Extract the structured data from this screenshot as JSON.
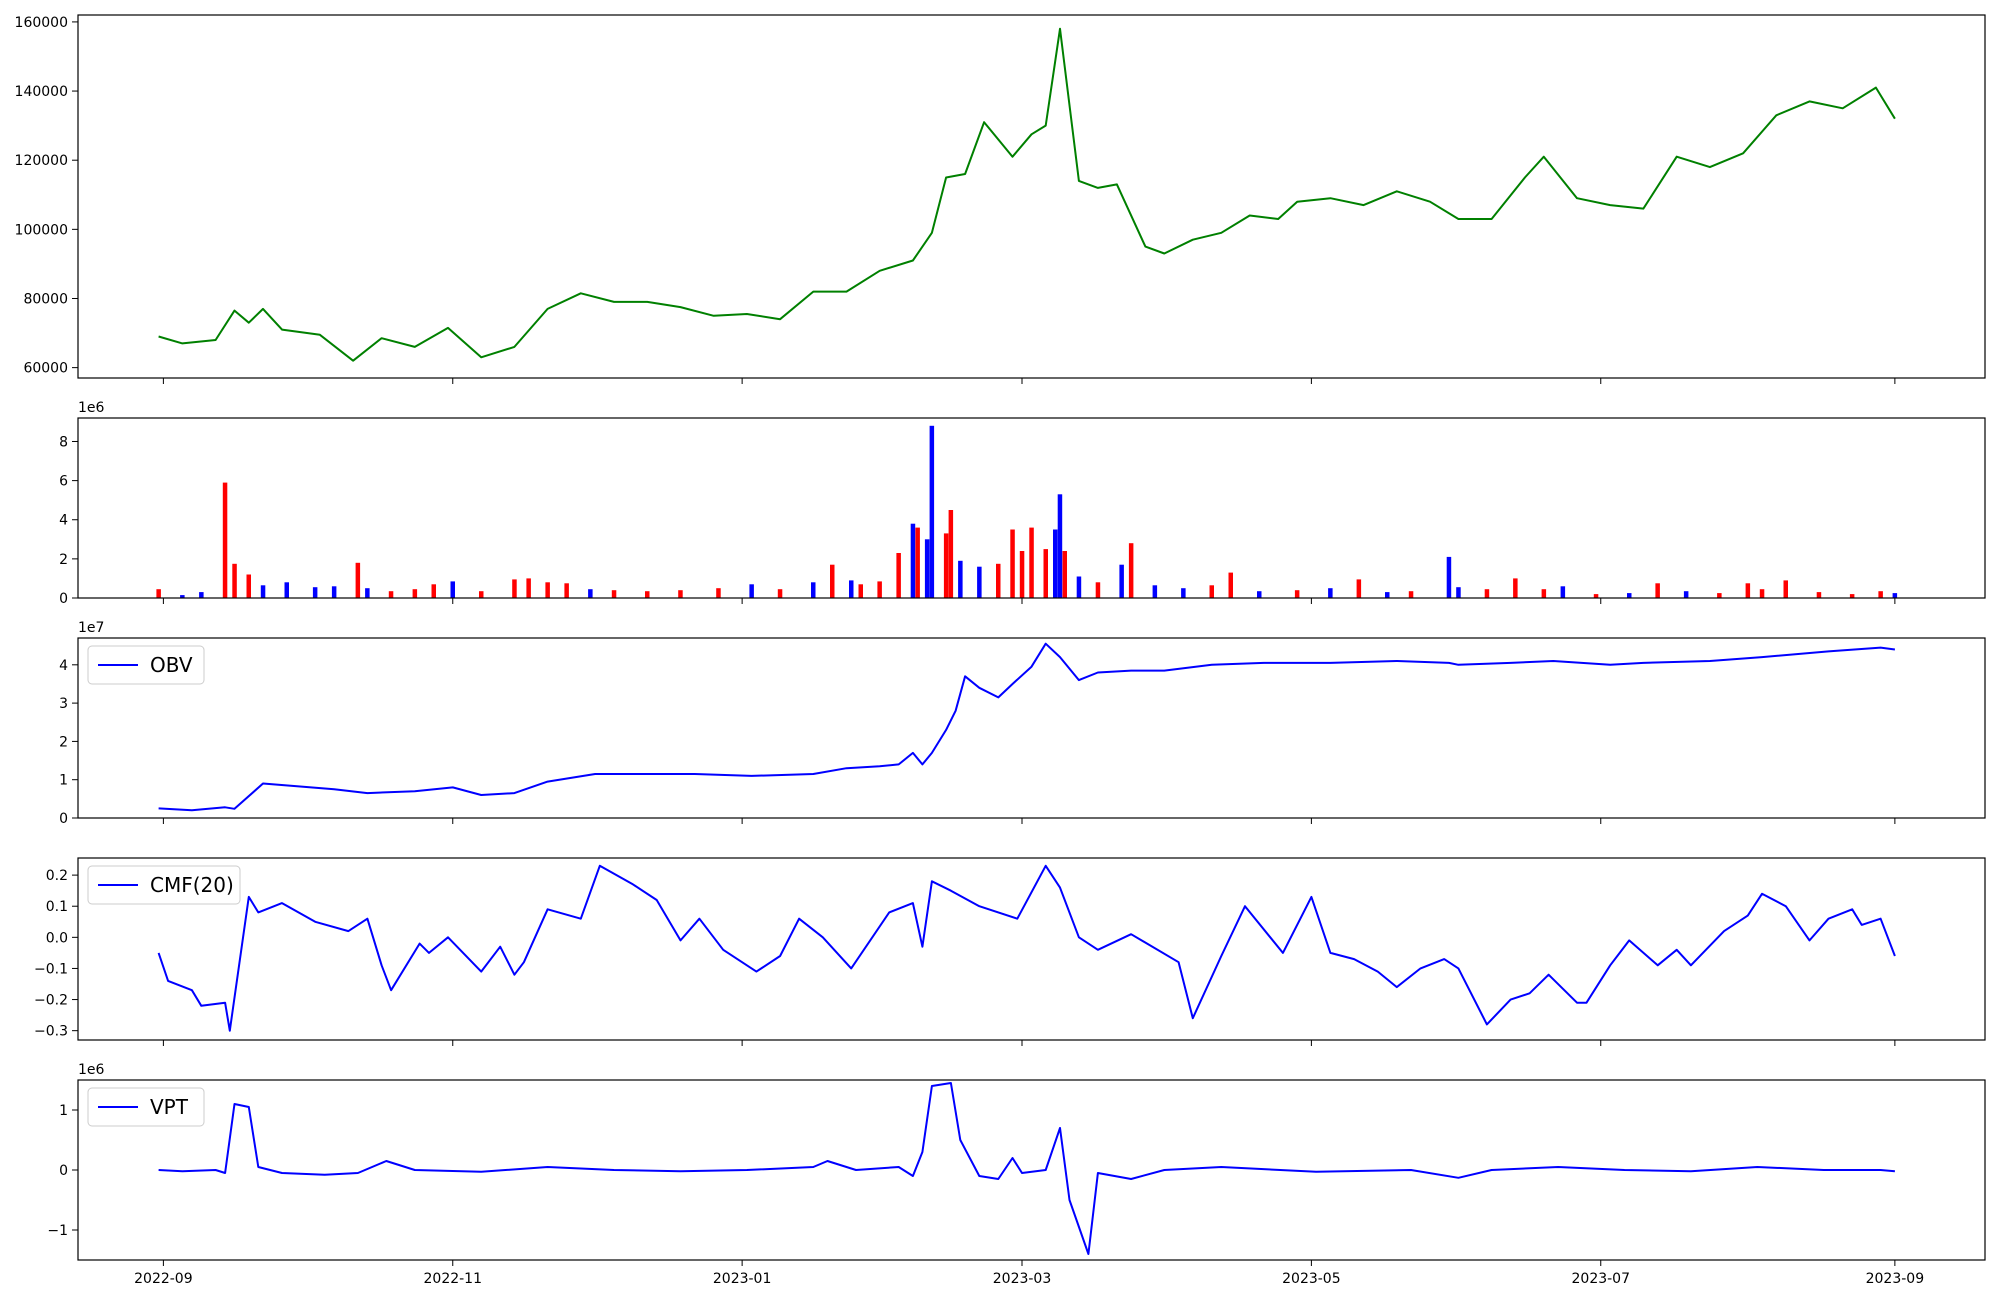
{
  "chart_data": {
    "type": "line",
    "x_axis": {
      "ticks": [
        "2022-09",
        "2022-11",
        "2023-01",
        "2023-03",
        "2023-05",
        "2023-07",
        "2023-09"
      ],
      "range": [
        "2022-08-14",
        "2023-09-20"
      ]
    },
    "panels": [
      {
        "id": "price",
        "kind": "line",
        "color": "#008000",
        "ylim": [
          57000,
          162000
        ],
        "yticks": [
          {
            "v": 60000,
            "label": "60000"
          },
          {
            "v": 80000,
            "label": "80000"
          },
          {
            "v": 100000,
            "label": "100000"
          },
          {
            "v": 120000,
            "label": "120000"
          },
          {
            "v": 140000,
            "label": "140000"
          },
          {
            "v": 160000,
            "label": "160000"
          }
        ],
        "x": [
          "2022-08-31",
          "2022-09-05",
          "2022-09-12",
          "2022-09-16",
          "2022-09-19",
          "2022-09-22",
          "2022-09-26",
          "2022-10-04",
          "2022-10-11",
          "2022-10-17",
          "2022-10-24",
          "2022-10-31",
          "2022-11-07",
          "2022-11-14",
          "2022-11-21",
          "2022-11-28",
          "2022-12-05",
          "2022-12-12",
          "2022-12-19",
          "2022-12-26",
          "2023-01-02",
          "2023-01-09",
          "2023-01-16",
          "2023-01-23",
          "2023-01-30",
          "2023-02-06",
          "2023-02-10",
          "2023-02-13",
          "2023-02-17",
          "2023-02-21",
          "2023-02-27",
          "2023-03-03",
          "2023-03-06",
          "2023-03-09",
          "2023-03-13",
          "2023-03-17",
          "2023-03-21",
          "2023-03-27",
          "2023-03-31",
          "2023-04-06",
          "2023-04-12",
          "2023-04-18",
          "2023-04-24",
          "2023-04-28",
          "2023-05-05",
          "2023-05-12",
          "2023-05-19",
          "2023-05-26",
          "2023-06-01",
          "2023-06-08",
          "2023-06-15",
          "2023-06-19",
          "2023-06-26",
          "2023-07-03",
          "2023-07-10",
          "2023-07-17",
          "2023-07-24",
          "2023-07-31",
          "2023-08-07",
          "2023-08-14",
          "2023-08-21",
          "2023-08-28",
          "2023-09-01"
        ],
        "values": [
          69000,
          67000,
          68000,
          76500,
          73000,
          77000,
          71000,
          69500,
          62000,
          68500,
          66000,
          71500,
          63000,
          66000,
          77000,
          81500,
          79000,
          79000,
          77500,
          75000,
          75500,
          74000,
          82000,
          82000,
          88000,
          91000,
          99000,
          115000,
          116000,
          131000,
          121000,
          127500,
          130000,
          158000,
          114000,
          112000,
          113000,
          95000,
          93000,
          97000,
          99000,
          104000,
          103000,
          108000,
          109000,
          107000,
          111000,
          108000,
          103000,
          103000,
          115000,
          121000,
          109000,
          107000,
          106000,
          121000,
          118000,
          122000,
          133000,
          137000,
          135000,
          141000,
          132000
        ]
      },
      {
        "id": "volume",
        "kind": "bar",
        "ylim": [
          0,
          9200000
        ],
        "exponent_label": "1e6",
        "yticks": [
          {
            "v": 0,
            "label": "0"
          },
          {
            "v": 2000000,
            "label": "2"
          },
          {
            "v": 4000000,
            "label": "4"
          },
          {
            "v": 6000000,
            "label": "6"
          },
          {
            "v": 8000000,
            "label": "8"
          }
        ],
        "colors": {
          "up": "#ff0000",
          "down": "#0000ff"
        },
        "x": [
          "2022-08-31",
          "2022-09-05",
          "2022-09-09",
          "2022-09-14",
          "2022-09-16",
          "2022-09-19",
          "2022-09-22",
          "2022-09-27",
          "2022-10-03",
          "2022-10-07",
          "2022-10-12",
          "2022-10-14",
          "2022-10-19",
          "2022-10-24",
          "2022-10-28",
          "2022-11-01",
          "2022-11-07",
          "2022-11-14",
          "2022-11-17",
          "2022-11-21",
          "2022-11-25",
          "2022-11-30",
          "2022-12-05",
          "2022-12-12",
          "2022-12-19",
          "2022-12-27",
          "2023-01-03",
          "2023-01-09",
          "2023-01-16",
          "2023-01-20",
          "2023-01-24",
          "2023-01-26",
          "2023-01-30",
          "2023-02-03",
          "2023-02-06",
          "2023-02-07",
          "2023-02-09",
          "2023-02-10",
          "2023-02-13",
          "2023-02-14",
          "2023-02-16",
          "2023-02-20",
          "2023-02-24",
          "2023-02-27",
          "2023-03-01",
          "2023-03-03",
          "2023-03-06",
          "2023-03-08",
          "2023-03-09",
          "2023-03-10",
          "2023-03-13",
          "2023-03-17",
          "2023-03-22",
          "2023-03-24",
          "2023-03-29",
          "2023-04-04",
          "2023-04-10",
          "2023-04-14",
          "2023-04-20",
          "2023-04-28",
          "2023-05-05",
          "2023-05-11",
          "2023-05-17",
          "2023-05-22",
          "2023-05-30",
          "2023-06-01",
          "2023-06-07",
          "2023-06-13",
          "2023-06-19",
          "2023-06-23",
          "2023-06-30",
          "2023-07-07",
          "2023-07-13",
          "2023-07-19",
          "2023-07-26",
          "2023-08-01",
          "2023-08-04",
          "2023-08-09",
          "2023-08-16",
          "2023-08-23",
          "2023-08-29",
          "2023-09-01"
        ],
        "values": [
          450000,
          150000,
          300000,
          5900000,
          1750000,
          1200000,
          650000,
          800000,
          550000,
          600000,
          1800000,
          500000,
          350000,
          450000,
          700000,
          850000,
          350000,
          950000,
          1000000,
          800000,
          750000,
          450000,
          400000,
          350000,
          400000,
          500000,
          700000,
          450000,
          800000,
          1700000,
          900000,
          700000,
          850000,
          2300000,
          3800000,
          3600000,
          3000000,
          8800000,
          3300000,
          4500000,
          1900000,
          1600000,
          1750000,
          3500000,
          2400000,
          3600000,
          2500000,
          3500000,
          5300000,
          2400000,
          1100000,
          800000,
          1700000,
          2800000,
          650000,
          500000,
          650000,
          1300000,
          350000,
          400000,
          500000,
          950000,
          300000,
          350000,
          2100000,
          550000,
          450000,
          1000000,
          450000,
          600000,
          200000,
          250000,
          750000,
          350000,
          250000,
          750000,
          450000,
          900000,
          300000,
          200000,
          350000,
          250000
        ],
        "directions": [
          "up",
          "down",
          "down",
          "up",
          "up",
          "up",
          "down",
          "down",
          "down",
          "down",
          "up",
          "down",
          "up",
          "up",
          "up",
          "down",
          "up",
          "up",
          "up",
          "up",
          "up",
          "down",
          "up",
          "up",
          "up",
          "up",
          "down",
          "up",
          "down",
          "up",
          "down",
          "up",
          "up",
          "up",
          "down",
          "up",
          "down",
          "down",
          "up",
          "up",
          "down",
          "down",
          "up",
          "up",
          "up",
          "up",
          "up",
          "down",
          "down",
          "up",
          "down",
          "up",
          "down",
          "up",
          "down",
          "down",
          "up",
          "up",
          "down",
          "up",
          "down",
          "up",
          "down",
          "up",
          "down",
          "down",
          "up",
          "up",
          "up",
          "down",
          "up",
          "down",
          "up",
          "down",
          "up",
          "up",
          "up",
          "up",
          "up",
          "up",
          "up",
          "down"
        ]
      },
      {
        "id": "obv",
        "kind": "line",
        "color": "#0000ff",
        "ylim": [
          0,
          47000000
        ],
        "exponent_label": "1e7",
        "legend": "OBV",
        "yticks": [
          {
            "v": 0,
            "label": "0"
          },
          {
            "v": 10000000,
            "label": "1"
          },
          {
            "v": 20000000,
            "label": "2"
          },
          {
            "v": 30000000,
            "label": "3"
          },
          {
            "v": 40000000,
            "label": "4"
          }
        ],
        "x": [
          "2022-08-31",
          "2022-09-07",
          "2022-09-14",
          "2022-09-16",
          "2022-09-22",
          "2022-10-07",
          "2022-10-14",
          "2022-10-24",
          "2022-11-01",
          "2022-11-07",
          "2022-11-14",
          "2022-11-21",
          "2022-12-01",
          "2022-12-12",
          "2022-12-22",
          "2023-01-03",
          "2023-01-16",
          "2023-01-23",
          "2023-01-30",
          "2023-02-03",
          "2023-02-06",
          "2023-02-08",
          "2023-02-10",
          "2023-02-13",
          "2023-02-15",
          "2023-02-17",
          "2023-02-20",
          "2023-02-24",
          "2023-02-27",
          "2023-03-03",
          "2023-03-06",
          "2023-03-09",
          "2023-03-13",
          "2023-03-17",
          "2023-03-24",
          "2023-03-31",
          "2023-04-10",
          "2023-04-21",
          "2023-05-05",
          "2023-05-19",
          "2023-05-30",
          "2023-06-01",
          "2023-06-12",
          "2023-06-21",
          "2023-07-03",
          "2023-07-10",
          "2023-07-24",
          "2023-08-04",
          "2023-08-18",
          "2023-08-29",
          "2023-09-01"
        ],
        "values": [
          2500000,
          2000000,
          2800000,
          2400000,
          9000000,
          7500000,
          6500000,
          7000000,
          8000000,
          6000000,
          6500000,
          9500000,
          11500000,
          11500000,
          11500000,
          11000000,
          11500000,
          13000000,
          13500000,
          14000000,
          17000000,
          14000000,
          17000000,
          23000000,
          28000000,
          37000000,
          34000000,
          31500000,
          35000000,
          39500000,
          45500000,
          42000000,
          36000000,
          38000000,
          38500000,
          38500000,
          40000000,
          40500000,
          40500000,
          41000000,
          40500000,
          40000000,
          40500000,
          41000000,
          40000000,
          40500000,
          41000000,
          42000000,
          43500000,
          44500000,
          44000000
        ]
      },
      {
        "id": "cmf",
        "kind": "line",
        "color": "#0000ff",
        "ylim": [
          -0.33,
          0.255
        ],
        "legend": "CMF(20)",
        "yticks": [
          {
            "v": -0.3,
            "label": "−0.3"
          },
          {
            "v": -0.2,
            "label": "−0.2"
          },
          {
            "v": -0.1,
            "label": "−0.1"
          },
          {
            "v": 0.0,
            "label": "0.0"
          },
          {
            "v": 0.1,
            "label": "0.1"
          },
          {
            "v": 0.2,
            "label": "0.2"
          }
        ],
        "x": [
          "2022-08-31",
          "2022-09-02",
          "2022-09-07",
          "2022-09-09",
          "2022-09-14",
          "2022-09-15",
          "2022-09-19",
          "2022-09-21",
          "2022-09-26",
          "2022-10-03",
          "2022-10-10",
          "2022-10-14",
          "2022-10-17",
          "2022-10-19",
          "2022-10-25",
          "2022-10-27",
          "2022-10-31",
          "2022-11-07",
          "2022-11-11",
          "2022-11-14",
          "2022-11-16",
          "2022-11-21",
          "2022-11-28",
          "2022-12-02",
          "2022-12-09",
          "2022-12-14",
          "2022-12-19",
          "2022-12-23",
          "2022-12-28",
          "2023-01-04",
          "2023-01-09",
          "2023-01-13",
          "2023-01-18",
          "2023-01-24",
          "2023-02-01",
          "2023-02-06",
          "2023-02-08",
          "2023-02-10",
          "2023-02-14",
          "2023-02-20",
          "2023-02-28",
          "2023-03-06",
          "2023-03-09",
          "2023-03-13",
          "2023-03-17",
          "2023-03-24",
          "2023-04-03",
          "2023-04-06",
          "2023-04-12",
          "2023-04-17",
          "2023-04-25",
          "2023-05-01",
          "2023-05-05",
          "2023-05-10",
          "2023-05-15",
          "2023-05-19",
          "2023-05-24",
          "2023-05-29",
          "2023-06-01",
          "2023-06-07",
          "2023-06-12",
          "2023-06-16",
          "2023-06-20",
          "2023-06-26",
          "2023-06-28",
          "2023-07-03",
          "2023-07-05",
          "2023-07-07",
          "2023-07-13",
          "2023-07-17",
          "2023-07-20",
          "2023-07-27",
          "2023-08-01",
          "2023-08-04",
          "2023-08-09",
          "2023-08-14",
          "2023-08-18",
          "2023-08-23",
          "2023-08-25",
          "2023-08-29",
          "2023-09-01"
        ],
        "values": [
          -0.05,
          -0.14,
          -0.17,
          -0.22,
          -0.21,
          -0.3,
          0.13,
          0.08,
          0.11,
          0.05,
          0.02,
          0.06,
          -0.09,
          -0.17,
          -0.02,
          -0.05,
          0.0,
          -0.11,
          -0.03,
          -0.12,
          -0.08,
          0.09,
          0.06,
          0.23,
          0.17,
          0.12,
          -0.01,
          0.06,
          -0.04,
          -0.11,
          -0.06,
          0.06,
          0.0,
          -0.1,
          0.08,
          0.11,
          -0.03,
          0.18,
          0.15,
          0.1,
          0.06,
          0.23,
          0.16,
          0.0,
          -0.04,
          0.01,
          -0.08,
          -0.26,
          -0.06,
          0.1,
          -0.05,
          0.13,
          -0.05,
          -0.07,
          -0.11,
          -0.16,
          -0.1,
          -0.07,
          -0.1,
          -0.28,
          -0.2,
          -0.18,
          -0.12,
          -0.21,
          -0.21,
          -0.09,
          -0.05,
          -0.01,
          -0.09,
          -0.04,
          -0.09,
          0.02,
          0.07,
          0.14,
          0.1,
          -0.01,
          0.06,
          0.09,
          0.04,
          0.06,
          -0.06
        ]
      },
      {
        "id": "vpt",
        "kind": "line",
        "color": "#0000ff",
        "ylim": [
          -1500000,
          1500000
        ],
        "exponent_label": "1e6",
        "legend": "VPT",
        "yticks": [
          {
            "v": -1000000,
            "label": "−1"
          },
          {
            "v": 0,
            "label": "0"
          },
          {
            "v": 1000000,
            "label": "1"
          }
        ],
        "x": [
          "2022-08-31",
          "2022-09-05",
          "2022-09-12",
          "2022-09-14",
          "2022-09-16",
          "2022-09-19",
          "2022-09-21",
          "2022-09-26",
          "2022-10-05",
          "2022-10-12",
          "2022-10-18",
          "2022-10-24",
          "2022-11-07",
          "2022-11-21",
          "2022-12-05",
          "2022-12-19",
          "2023-01-02",
          "2023-01-16",
          "2023-01-19",
          "2023-01-25",
          "2023-02-03",
          "2023-02-06",
          "2023-02-08",
          "2023-02-10",
          "2023-02-14",
          "2023-02-16",
          "2023-02-20",
          "2023-02-24",
          "2023-02-27",
          "2023-03-01",
          "2023-03-06",
          "2023-03-09",
          "2023-03-11",
          "2023-03-15",
          "2023-03-17",
          "2023-03-24",
          "2023-03-31",
          "2023-04-12",
          "2023-05-02",
          "2023-05-22",
          "2023-06-01",
          "2023-06-08",
          "2023-06-22",
          "2023-07-06",
          "2023-07-20",
          "2023-08-03",
          "2023-08-17",
          "2023-08-29",
          "2023-09-01"
        ],
        "values": [
          0,
          -20000,
          0,
          -50000,
          1100000,
          1050000,
          50000,
          -50000,
          -80000,
          -50000,
          150000,
          0,
          -30000,
          50000,
          0,
          -20000,
          0,
          50000,
          150000,
          0,
          50000,
          -100000,
          300000,
          1400000,
          1450000,
          500000,
          -100000,
          -150000,
          200000,
          -50000,
          0,
          700000,
          -500000,
          -1400000,
          -50000,
          -150000,
          0,
          50000,
          -30000,
          0,
          -130000,
          0,
          50000,
          0,
          -20000,
          50000,
          0,
          0,
          -20000
        ]
      }
    ]
  }
}
